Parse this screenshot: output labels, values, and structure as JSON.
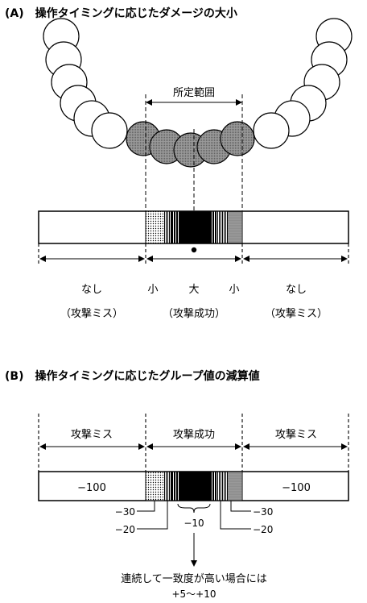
{
  "section_a": {
    "title": "(A)　操作タイミングに応じたダメージの大小",
    "range_label": "所定範囲",
    "zone_left_label": "なし",
    "zone_left_sub": "（攻撃ミス）",
    "zone_center_small_left": "小",
    "zone_center_large": "大",
    "zone_center_small_right": "小",
    "zone_center_sub": "（攻撃成功）",
    "zone_right_label": "なし",
    "zone_right_sub": "（攻撃ミス）"
  },
  "section_b": {
    "title": "(B)　操作タイミングに応じたグループ値の減算値",
    "header_left": "攻撃ミス",
    "header_center": "攻撃成功",
    "header_right": "攻撃ミス",
    "value_left": "−100",
    "value_right": "−100",
    "callout_minus30_left": "−30",
    "callout_minus20_left": "−20",
    "callout_minus10": "−10",
    "callout_minus20_right": "−20",
    "callout_minus30_right": "−30",
    "note_line1": "連続して一致度が高い場合には",
    "note_line2": "+5〜+10"
  },
  "colors": {
    "ink": "#000000",
    "circle_plain": "#ffffff",
    "circle_hit": "#8a8a8a"
  }
}
